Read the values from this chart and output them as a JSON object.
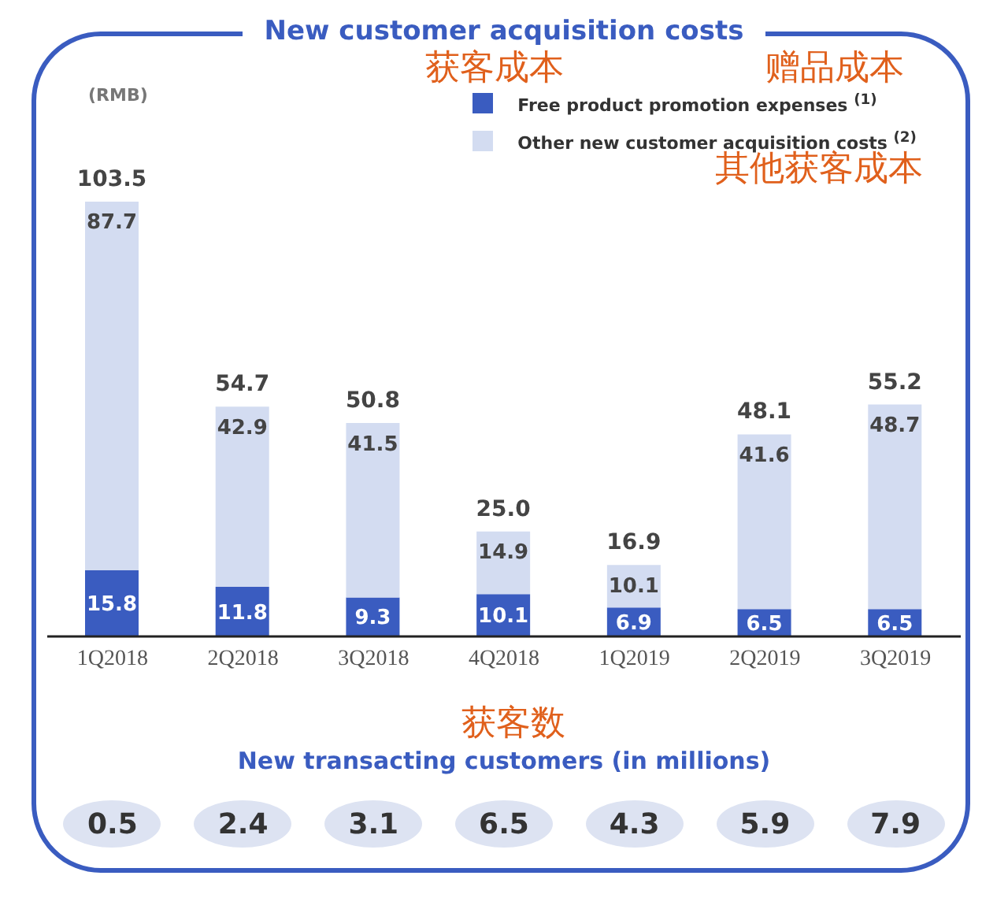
{
  "chart_data": [
    {
      "type": "bar",
      "title": "New customer acquisition costs",
      "ylabel": "(RMB)",
      "stacked": true,
      "data_labels": true,
      "legend": "top right",
      "grid": false,
      "categories": [
        "1Q2018",
        "2Q2018",
        "3Q2018",
        "4Q2018",
        "1Q2019",
        "2Q2019",
        "3Q2019"
      ],
      "series": [
        {
          "name": "Free product promotion expenses $^{(1)}$",
          "color": "#3a5cc0",
          "values": [
            15.8,
            11.8,
            9.3,
            10.1,
            6.9,
            6.5,
            6.5
          ]
        },
        {
          "name": "Other new customer acquisition costs $^{(2)}$",
          "color": "#d3dcf1",
          "values": [
            87.7,
            42.9,
            41.5,
            14.9,
            10.1,
            41.6,
            48.7
          ]
        }
      ],
      "totals": [
        "103.5",
        "54.7",
        "50.8",
        "25.0",
        "16.9",
        "48.1",
        "55.2"
      ],
      "annotations": [
        "获客成本",
        "赠品成本",
        "其他获客成本"
      ]
    },
    {
      "type": "other",
      "title": "New transacting customers (in millions)",
      "categories": [
        null,
        null,
        null,
        null,
        null,
        null,
        null
      ],
      "values": [
        0.5,
        2.4,
        3.1,
        6.5,
        4.3,
        5.9,
        7.9
      ],
      "data_labels": true,
      "annotations": [
        "获客数"
      ]
    }
  ]
}
